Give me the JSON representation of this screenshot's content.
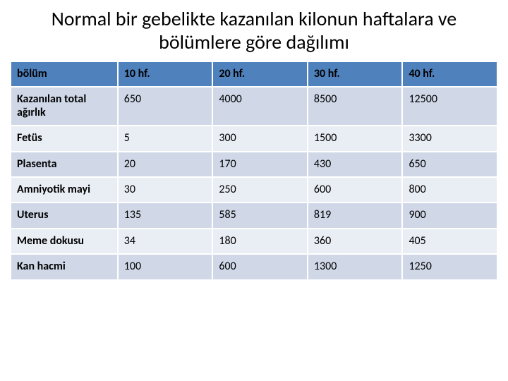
{
  "title": "Normal bir gebelikte kazanılan kilonun haftalara ve bölümlere göre dağılımı",
  "table": {
    "type": "table",
    "header_bg": "#4f81bd",
    "band_a_bg": "#d0d8e8",
    "band_b_bg": "#e9edf4",
    "border_color": "#ffffff",
    "text_color": "#000000",
    "font_size_pt": 12,
    "columns": [
      {
        "label": "bölüm",
        "width_pct": 22,
        "align": "left"
      },
      {
        "label": "10 hf.",
        "width_pct": 19.5,
        "align": "left"
      },
      {
        "label": "20 hf.",
        "width_pct": 19.5,
        "align": "left"
      },
      {
        "label": "30 hf.",
        "width_pct": 19.5,
        "align": "left"
      },
      {
        "label": "40 hf.",
        "width_pct": 19.5,
        "align": "left"
      }
    ],
    "rows": [
      {
        "label": "Kazanılan total ağırlık",
        "cells": [
          "650",
          "4000",
          "8500",
          "12500"
        ]
      },
      {
        "label": "Fetüs",
        "cells": [
          "5",
          "300",
          "1500",
          "3300"
        ]
      },
      {
        "label": "Plasenta",
        "cells": [
          "20",
          "170",
          "430",
          "650"
        ]
      },
      {
        "label": "Amniyotik mayi",
        "cells": [
          "30",
          "250",
          "600",
          "800"
        ]
      },
      {
        "label": "Uterus",
        "cells": [
          "135",
          "585",
          "819",
          "900"
        ]
      },
      {
        "label": "Meme dokusu",
        "cells": [
          "34",
          "180",
          "360",
          "405"
        ]
      },
      {
        "label": "Kan hacmi",
        "cells": [
          "100",
          "600",
          "1300",
          "1250"
        ]
      }
    ]
  }
}
